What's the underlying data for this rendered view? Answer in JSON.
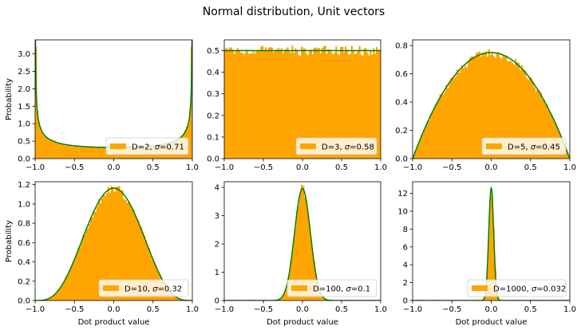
{
  "figure": {
    "title": "Normal distribution, Unit vectors"
  },
  "colors": {
    "bar": "#ffa500",
    "curve": "#008000",
    "axes": "#000000",
    "legend_border": "#cccccc"
  },
  "chart_data": [
    {
      "type": "bar",
      "subtype": "histogram+line",
      "dimension": 2,
      "sigma": 0.71,
      "legend": "D=2, σ=0.71",
      "legend_main": "D=2, ",
      "legend_sigma": "σ",
      "legend_value": "=0.71",
      "xlim": [
        -1,
        1
      ],
      "ylim": [
        0,
        3.4
      ],
      "xticks": [
        -1.0,
        -0.5,
        0.0,
        0.5,
        1.0
      ],
      "xtick_labels": [
        "−1.0",
        "−0.5",
        "0.0",
        "0.5",
        "1.0"
      ],
      "yticks": [
        0,
        0.5,
        1.0,
        1.5,
        2.0,
        2.5,
        3.0
      ],
      "ytick_labels": [
        "0.0",
        "0.5",
        "1.0",
        "1.5",
        "2.0",
        "2.5",
        "3.0"
      ],
      "xlabel": "",
      "ylabel": "Probability",
      "edge_bars": {
        "left": 3.2,
        "right": 3.2
      },
      "legend_position": "lower right",
      "grid": false
    },
    {
      "type": "bar",
      "subtype": "histogram+line",
      "dimension": 3,
      "sigma": 0.58,
      "legend": "D=3, σ=0.58",
      "legend_main": "D=3, ",
      "legend_sigma": "σ",
      "legend_value": "=0.58",
      "xlim": [
        -1,
        1
      ],
      "ylim": [
        0,
        0.55
      ],
      "xticks": [
        -1.0,
        -0.5,
        0.0,
        0.5,
        1.0
      ],
      "xtick_labels": [
        "−1.0",
        "−0.5",
        "0.0",
        "0.5",
        "1.0"
      ],
      "yticks": [
        0,
        0.1,
        0.2,
        0.3,
        0.4,
        0.5
      ],
      "ytick_labels": [
        "0.0",
        "0.1",
        "0.2",
        "0.3",
        "0.4",
        "0.5"
      ],
      "xlabel": "",
      "ylabel": "",
      "legend_position": "lower right",
      "grid": false
    },
    {
      "type": "bar",
      "subtype": "histogram+line",
      "dimension": 5,
      "sigma": 0.45,
      "legend": "D=5, σ=0.45",
      "legend_main": "D=5, ",
      "legend_sigma": "σ",
      "legend_value": "=0.45",
      "xlim": [
        -1,
        1
      ],
      "ylim": [
        0,
        0.84
      ],
      "xticks": [
        -1.0,
        -0.5,
        0.0,
        0.5,
        1.0
      ],
      "xtick_labels": [
        "−1.0",
        "−0.5",
        "0.0",
        "0.5",
        "1.0"
      ],
      "yticks": [
        0,
        0.2,
        0.4,
        0.6,
        0.8
      ],
      "ytick_labels": [
        "0.0",
        "0.2",
        "0.4",
        "0.6",
        "0.8"
      ],
      "xlabel": "",
      "ylabel": "",
      "legend_position": "lower right",
      "grid": false
    },
    {
      "type": "bar",
      "subtype": "histogram+line",
      "dimension": 10,
      "sigma": 0.32,
      "legend": "D=10, σ=0.32",
      "legend_main": "D=10, ",
      "legend_sigma": "σ",
      "legend_value": "=0.32",
      "xlim": [
        -1,
        1
      ],
      "ylim": [
        0,
        1.23
      ],
      "xticks": [
        -1.0,
        -0.5,
        0.0,
        0.5,
        1.0
      ],
      "xtick_labels": [
        "−1.0",
        "−0.5",
        "0.0",
        "0.5",
        "1.0"
      ],
      "yticks": [
        0,
        0.2,
        0.4,
        0.6,
        0.8,
        1.0,
        1.2
      ],
      "ytick_labels": [
        "0.0",
        "0.2",
        "0.4",
        "0.6",
        "0.8",
        "1.0",
        "1.2"
      ],
      "xlabel": "Dot product value",
      "ylabel": "Probability",
      "legend_position": "lower right",
      "grid": false
    },
    {
      "type": "bar",
      "subtype": "histogram+line",
      "dimension": 100,
      "sigma": 0.1,
      "legend": "D=100, σ=0.1",
      "legend_main": "D=100, ",
      "legend_sigma": "σ",
      "legend_value": "=0.1",
      "xlim": [
        -1,
        1
      ],
      "ylim": [
        0,
        4.2
      ],
      "xticks": [
        -1.0,
        -0.5,
        0.0,
        0.5,
        1.0
      ],
      "xtick_labels": [
        "−1.0",
        "−0.5",
        "0.0",
        "0.5",
        "1.0"
      ],
      "yticks": [
        0,
        1,
        2,
        3,
        4
      ],
      "ytick_labels": [
        "0",
        "1",
        "2",
        "3",
        "4"
      ],
      "xlabel": "Dot product value",
      "ylabel": "",
      "legend_position": "lower right",
      "grid": false
    },
    {
      "type": "bar",
      "subtype": "histogram+line",
      "dimension": 1000,
      "sigma": 0.032,
      "legend": "D=1000, σ=0.032",
      "legend_main": "D=1000, ",
      "legend_sigma": "σ",
      "legend_value": "=0.032",
      "xlim": [
        -1,
        1
      ],
      "ylim": [
        0,
        13.3
      ],
      "xticks": [
        -1.0,
        -0.5,
        0.0,
        0.5,
        1.0
      ],
      "xtick_labels": [
        "−1.0",
        "−0.5",
        "0.0",
        "0.5",
        "1.0"
      ],
      "yticks": [
        0,
        2,
        4,
        6,
        8,
        10,
        12
      ],
      "ytick_labels": [
        "0",
        "2",
        "4",
        "6",
        "8",
        "10",
        "12"
      ],
      "xlabel": "Dot product value",
      "ylabel": "",
      "legend_position": "lower right",
      "grid": false
    }
  ]
}
